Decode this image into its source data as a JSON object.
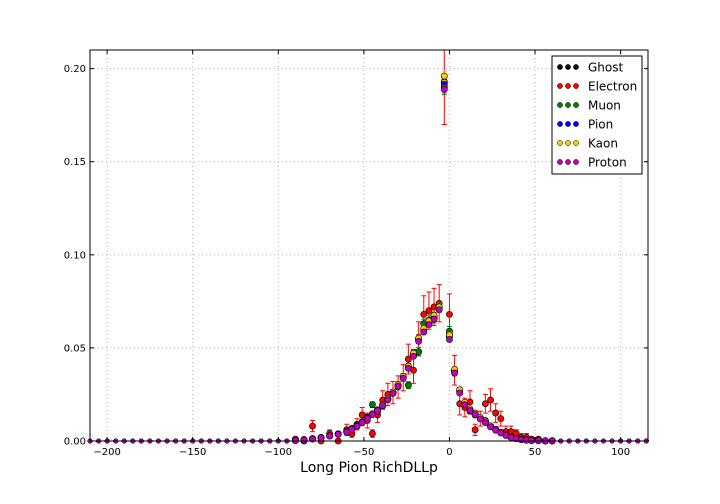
{
  "chart_data": {
    "type": "scatter",
    "xlabel": "Long Pion RichDLLp",
    "ylabel": "",
    "xlim": [
      -210,
      116
    ],
    "ylim": [
      0,
      0.21
    ],
    "x_ticks": [
      -200,
      -150,
      -100,
      -50,
      0,
      50,
      100
    ],
    "y_ticks": [
      0.0,
      0.05,
      0.1,
      0.15,
      0.2
    ],
    "x_tick_labels": [
      "−200",
      "−150",
      "−100",
      "−50",
      "0",
      "50",
      "100"
    ],
    "y_tick_labels": [
      "0.00",
      "0.05",
      "0.10",
      "0.15",
      "0.20"
    ],
    "grid": true,
    "legend_position": "top-right",
    "x": [
      -90,
      -85,
      -80,
      -75,
      -70,
      -65,
      -60,
      -57,
      -54,
      -51,
      -48,
      -45,
      -42,
      -39,
      -36,
      -33,
      -30,
      -27,
      -24,
      -21,
      -18,
      -15,
      -12,
      -9,
      -6,
      -3,
      0,
      3,
      6,
      9,
      12,
      15,
      18,
      21,
      24,
      27,
      30,
      33,
      36,
      39,
      42,
      45,
      48,
      52,
      56,
      60
    ],
    "series": [
      {
        "name": "Ghost",
        "color": "#000000",
        "values": [
          0.0003,
          0.0006,
          0.0012,
          0.0018,
          0.0028,
          0.0038,
          0.005,
          0.0065,
          0.0082,
          0.0102,
          0.0125,
          0.0145,
          0.0168,
          0.0195,
          0.0228,
          0.0262,
          0.03,
          0.0345,
          0.04,
          0.047,
          0.055,
          0.06,
          0.064,
          0.067,
          0.0715,
          0.192,
          0.0575,
          0.038,
          0.027,
          0.0205,
          0.017,
          0.0148,
          0.0125,
          0.0105,
          0.008,
          0.0062,
          0.0046,
          0.0032,
          0.0021,
          0.0013,
          0.0008,
          0.0005,
          0.0003,
          0.0002,
          0.0001,
          0.0001
        ],
        "errors": [
          0.0001,
          0.0002,
          0.0003,
          0.0004,
          0.0005,
          0.0005,
          0.0006,
          0.0007,
          0.0008,
          0.0009,
          0.001,
          0.001,
          0.0011,
          0.0012,
          0.0013,
          0.0014,
          0.0015,
          0.0016,
          0.0017,
          0.0018,
          0.002,
          0.002,
          0.0021,
          0.0021,
          0.0022,
          0.004,
          0.002,
          0.0017,
          0.0015,
          0.0013,
          0.0012,
          0.0011,
          0.001,
          0.0009,
          0.0008,
          0.0007,
          0.0006,
          0.0005,
          0.0004,
          0.0003,
          0.0003,
          0.0002,
          0.0002,
          0.0001,
          0.0001,
          0.0001
        ]
      },
      {
        "name": "Electron",
        "color": "#ff0000",
        "values": [
          0.001,
          0.0,
          0.008,
          0.0,
          0.004,
          0.0,
          0.006,
          0.004,
          0.009,
          0.014,
          0.011,
          0.004,
          0.014,
          0.022,
          0.025,
          0.026,
          0.029,
          0.034,
          0.044,
          0.038,
          0.055,
          0.068,
          0.07,
          0.072,
          0.074,
          0.19,
          0.068,
          0.038,
          0.02,
          0.018,
          0.021,
          0.006,
          0.012,
          0.02,
          0.022,
          0.015,
          0.012,
          0.005,
          0.005,
          0.004,
          0.002,
          0.002,
          0.001,
          0.001,
          0.0,
          0.0
        ],
        "errors": [
          0.001,
          0.001,
          0.003,
          0.001,
          0.002,
          0.001,
          0.003,
          0.002,
          0.003,
          0.004,
          0.004,
          0.002,
          0.004,
          0.005,
          0.006,
          0.006,
          0.006,
          0.007,
          0.008,
          0.007,
          0.009,
          0.01,
          0.01,
          0.01,
          0.01,
          0.02,
          0.011,
          0.008,
          0.006,
          0.005,
          0.006,
          0.003,
          0.004,
          0.005,
          0.006,
          0.005,
          0.004,
          0.003,
          0.003,
          0.002,
          0.002,
          0.002,
          0.001,
          0.001,
          0.001,
          0.001
        ]
      },
      {
        "name": "Muon",
        "color": "#008000",
        "values": [
          0.0004,
          0.0008,
          0.0013,
          0.0019,
          0.0029,
          0.0039,
          0.0052,
          0.0068,
          0.0085,
          0.0098,
          0.0128,
          0.0195,
          0.016,
          0.019,
          0.0225,
          0.026,
          0.03,
          0.034,
          0.03,
          0.047,
          0.048,
          0.063,
          0.065,
          0.066,
          0.072,
          0.191,
          0.059,
          0.037,
          0.027,
          0.02,
          0.016,
          0.014,
          0.012,
          0.011,
          0.008,
          0.0062,
          0.0047,
          0.0033,
          0.0022,
          0.0014,
          0.0009,
          0.0005,
          0.0003,
          0.0002,
          0.0001,
          0.0001
        ],
        "errors": [
          0.0002,
          0.0003,
          0.0004,
          0.0005,
          0.0006,
          0.0007,
          0.0008,
          0.0009,
          0.001,
          0.0011,
          0.0012,
          0.0015,
          0.0014,
          0.0015,
          0.0016,
          0.0017,
          0.0018,
          0.0019,
          0.0018,
          0.0022,
          0.0023,
          0.0025,
          0.0026,
          0.0026,
          0.0027,
          0.005,
          0.0025,
          0.002,
          0.0018,
          0.0016,
          0.0014,
          0.0013,
          0.0012,
          0.0011,
          0.001,
          0.0009,
          0.0008,
          0.0007,
          0.0006,
          0.0005,
          0.0004,
          0.0003,
          0.0002,
          0.0002,
          0.0001,
          0.0001
        ]
      },
      {
        "name": "Pion",
        "color": "#0000ff",
        "values": [
          0.0003,
          0.0006,
          0.0011,
          0.0017,
          0.0027,
          0.0037,
          0.0049,
          0.0064,
          0.008,
          0.01,
          0.0122,
          0.0143,
          0.0165,
          0.0192,
          0.0225,
          0.0258,
          0.0296,
          0.034,
          0.0395,
          0.046,
          0.054,
          0.059,
          0.063,
          0.066,
          0.071,
          0.193,
          0.056,
          0.0375,
          0.0265,
          0.02,
          0.0168,
          0.0146,
          0.0122,
          0.0102,
          0.0078,
          0.006,
          0.0045,
          0.0031,
          0.002,
          0.0012,
          0.0008,
          0.0005,
          0.0003,
          0.0002,
          0.0001,
          0.0001
        ],
        "errors": [
          0.0001,
          0.0001,
          0.0001,
          0.0001,
          0.0002,
          0.0002,
          0.0002,
          0.0002,
          0.0003,
          0.0003,
          0.0003,
          0.0003,
          0.0004,
          0.0004,
          0.0004,
          0.0004,
          0.0005,
          0.0005,
          0.0005,
          0.0006,
          0.0006,
          0.0006,
          0.0007,
          0.0007,
          0.0007,
          0.0012,
          0.0006,
          0.0005,
          0.0004,
          0.0004,
          0.0003,
          0.0003,
          0.0003,
          0.0003,
          0.0002,
          0.0002,
          0.0002,
          0.0002,
          0.0001,
          0.0001,
          0.0001,
          0.0001,
          0.0001,
          0.0001,
          0.0001,
          0.0001
        ]
      },
      {
        "name": "Kaon",
        "color": "#ffcc00",
        "values": [
          0.0003,
          0.0007,
          0.0012,
          0.0018,
          0.0028,
          0.0038,
          0.005,
          0.0066,
          0.0083,
          0.0103,
          0.0124,
          0.0146,
          0.0167,
          0.0196,
          0.0229,
          0.0263,
          0.0302,
          0.0347,
          0.0402,
          0.0472,
          0.0552,
          0.0605,
          0.0645,
          0.0675,
          0.072,
          0.196,
          0.057,
          0.0385,
          0.0275,
          0.0208,
          0.0172,
          0.015,
          0.0127,
          0.0107,
          0.0082,
          0.0063,
          0.0047,
          0.0033,
          0.0021,
          0.0013,
          0.0008,
          0.0005,
          0.0003,
          0.0002,
          0.0001,
          0.0001
        ],
        "errors": [
          0.0001,
          0.0002,
          0.0002,
          0.0003,
          0.0003,
          0.0004,
          0.0004,
          0.0005,
          0.0005,
          0.0006,
          0.0006,
          0.0007,
          0.0007,
          0.0008,
          0.0008,
          0.0009,
          0.001,
          0.001,
          0.0011,
          0.0012,
          0.0013,
          0.0013,
          0.0014,
          0.0014,
          0.0015,
          0.0025,
          0.0014,
          0.0011,
          0.001,
          0.0009,
          0.0008,
          0.0007,
          0.0007,
          0.0006,
          0.0005,
          0.0005,
          0.0004,
          0.0003,
          0.0003,
          0.0002,
          0.0002,
          0.0001,
          0.0001,
          0.0001,
          0.0001,
          0.0001
        ]
      },
      {
        "name": "Proton",
        "color": "#bf00bf",
        "values": [
          0.0003,
          0.0006,
          0.0011,
          0.0017,
          0.0027,
          0.0036,
          0.0048,
          0.0063,
          0.0079,
          0.0099,
          0.012,
          0.0141,
          0.0163,
          0.019,
          0.0222,
          0.0255,
          0.0293,
          0.0337,
          0.039,
          0.0455,
          0.0535,
          0.0585,
          0.0625,
          0.0655,
          0.0705,
          0.189,
          0.0545,
          0.0365,
          0.0258,
          0.0195,
          0.0164,
          0.0142,
          0.0119,
          0.0099,
          0.0076,
          0.0058,
          0.0043,
          0.003,
          0.0019,
          0.0012,
          0.0007,
          0.0004,
          0.0003,
          0.0002,
          0.0001,
          0.0001
        ],
        "errors": [
          0.0001,
          0.0001,
          0.0002,
          0.0002,
          0.0003,
          0.0003,
          0.0003,
          0.0004,
          0.0004,
          0.0005,
          0.0005,
          0.0005,
          0.0006,
          0.0006,
          0.0007,
          0.0007,
          0.0008,
          0.0008,
          0.0009,
          0.001,
          0.001,
          0.0011,
          0.0011,
          0.0012,
          0.0012,
          0.002,
          0.0011,
          0.0009,
          0.0008,
          0.0007,
          0.0006,
          0.0006,
          0.0005,
          0.0005,
          0.0004,
          0.0004,
          0.0003,
          0.0003,
          0.0002,
          0.0002,
          0.0001,
          0.0001,
          0.0001,
          0.0001,
          0.0001,
          0.0001
        ]
      }
    ]
  }
}
